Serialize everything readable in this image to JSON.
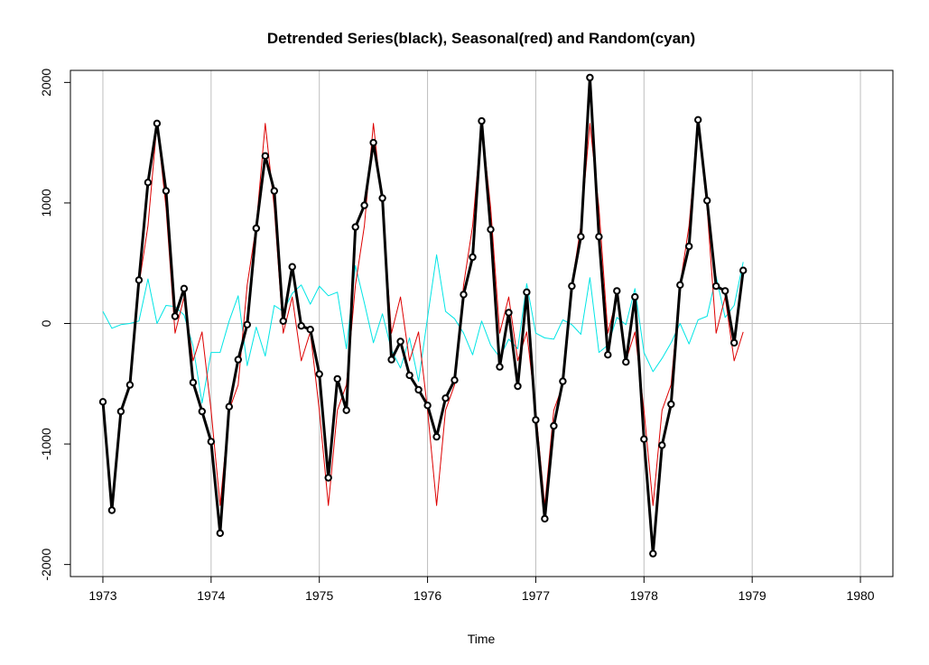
{
  "chart_data": {
    "type": "line",
    "title": "Detrended Series(black), Seasonal(red) and Random(cyan)",
    "xlabel": "Time",
    "ylabel": "",
    "xlim": [
      1972.7,
      1980.3
    ],
    "ylim": [
      -2100,
      2100
    ],
    "x_ticks": [
      1973,
      1974,
      1975,
      1976,
      1977,
      1978,
      1979,
      1980
    ],
    "x_tick_labels": [
      "1973",
      "1974",
      "1975",
      "1976",
      "1977",
      "1978",
      "1979",
      "1980"
    ],
    "y_ticks": [
      -2000,
      -1000,
      0,
      1000,
      2000
    ],
    "y_tick_labels": [
      "-2000",
      "-1000",
      "0",
      "1000",
      "2000"
    ],
    "grid": true,
    "x_start": 1973,
    "x_step": 0.0833333,
    "series": [
      {
        "color": "#000000",
        "values": [
          -650,
          -1550,
          -730,
          -510,
          360,
          1170,
          1660,
          1100,
          60,
          290,
          -490,
          -730,
          -980,
          -1740,
          -690,
          -300,
          -10,
          790,
          1390,
          1100,
          20,
          470,
          -20,
          -50,
          -420,
          -1280,
          -460,
          -720,
          800,
          980,
          1500,
          1040,
          -300,
          -150,
          -430,
          -550,
          -680,
          -940,
          -620,
          -470,
          240,
          550,
          1680,
          780,
          -360,
          90,
          -520,
          260,
          -800,
          -1620,
          -850,
          -480,
          310,
          720,
          2040,
          720,
          -260,
          270,
          -320,
          220,
          -960,
          -1910,
          -1010,
          -670,
          320,
          640,
          1690,
          1020,
          310,
          270,
          -160,
          440
        ]
      },
      {
        "color": "#dd0000",
        "values": [
          -720,
          -1510,
          -720,
          -510,
          320,
          810,
          1660,
          960,
          -80,
          220,
          -310,
          -70,
          -720,
          -1510,
          -720,
          -510,
          320,
          810,
          1660,
          960,
          -80,
          220,
          -310,
          -70,
          -720,
          -1510,
          -720,
          -510,
          320,
          810,
          1660,
          960,
          -80,
          220,
          -310,
          -70,
          -720,
          -1510,
          -720,
          -510,
          320,
          810,
          1660,
          960,
          -80,
          220,
          -310,
          -70,
          -720,
          -1510,
          -720,
          -510,
          320,
          810,
          1660,
          960,
          -80,
          220,
          -310,
          -70,
          -720,
          -1510,
          -720,
          -510,
          320,
          810,
          1660,
          960,
          -80,
          220,
          -310,
          -70
        ]
      },
      {
        "color": "#00e5e5",
        "values": [
          100,
          -40,
          -10,
          0,
          20,
          370,
          0,
          150,
          140,
          70,
          -190,
          -660,
          -240,
          -240,
          20,
          230,
          -350,
          -30,
          -270,
          150,
          100,
          250,
          320,
          160,
          310,
          230,
          260,
          -210,
          480,
          170,
          -160,
          80,
          -220,
          -370,
          -120,
          -480,
          50,
          570,
          100,
          40,
          -80,
          -260,
          20,
          -180,
          -280,
          -130,
          -210,
          330,
          -80,
          -120,
          -130,
          30,
          -10,
          -90,
          380,
          -240,
          -180,
          50,
          -10,
          290,
          -240,
          -400,
          -290,
          -160,
          0,
          -170,
          30,
          60,
          390,
          50,
          150,
          510
        ]
      }
    ]
  }
}
